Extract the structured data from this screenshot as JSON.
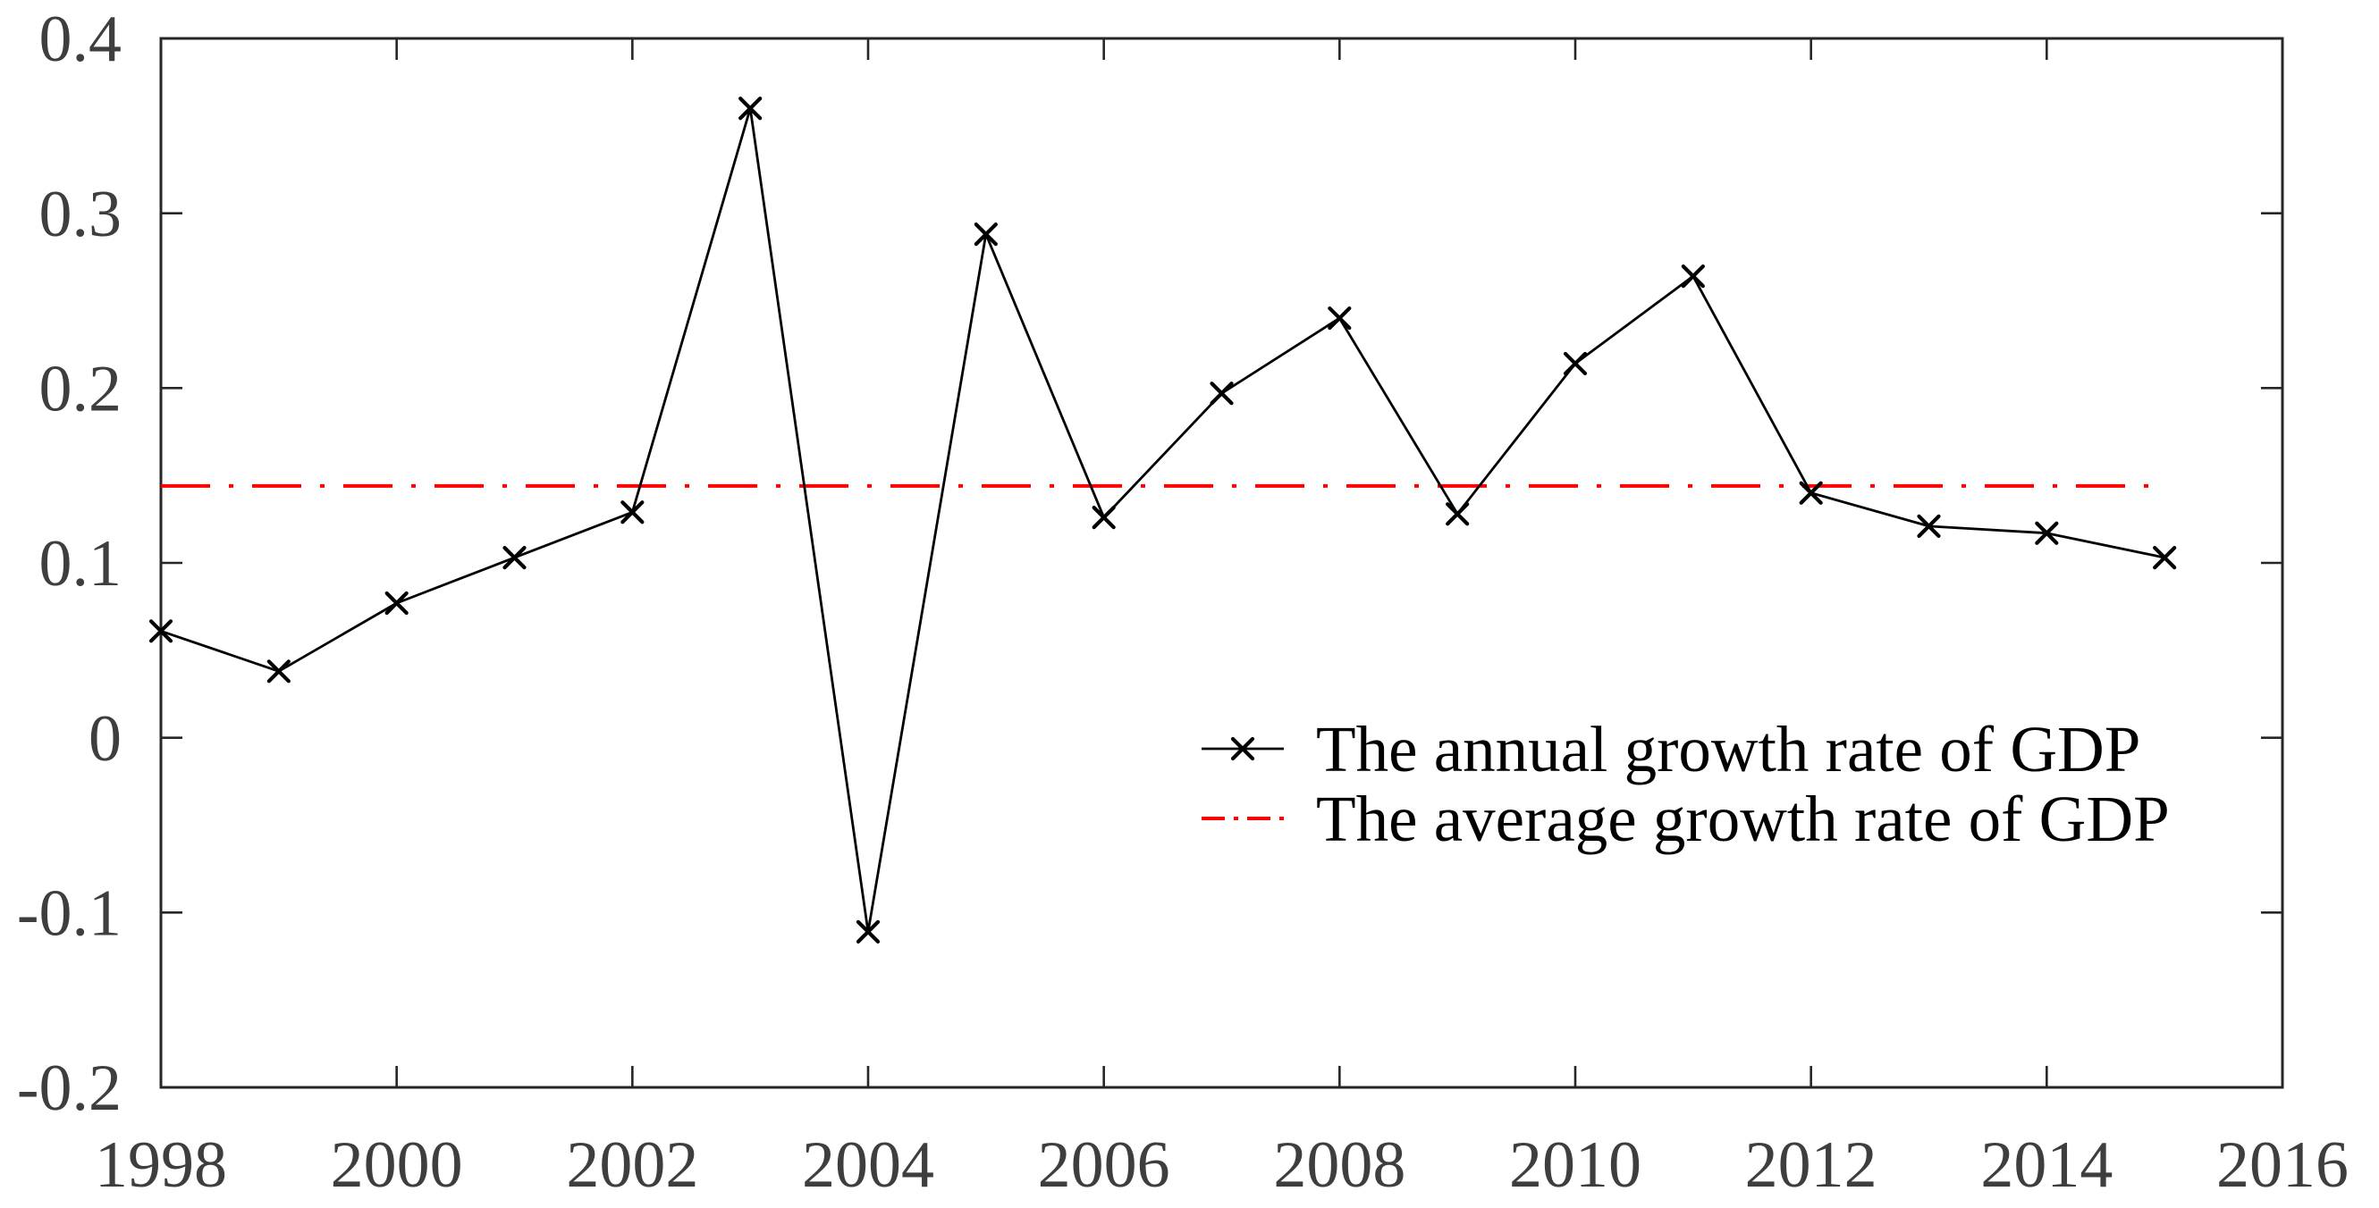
{
  "figure": {
    "background_color": "#ffffff",
    "axis_color": "#262626",
    "tick_label_color": "#3e3e3e",
    "series_color": "#000000",
    "average_line_color": "#ff0000"
  },
  "chart_data": {
    "type": "line",
    "title": "",
    "xlabel": "",
    "ylabel": "",
    "grid": false,
    "xlim": [
      1998,
      2016
    ],
    "ylim": [
      -0.2,
      0.4
    ],
    "xtick_labels": [
      "1998",
      "2000",
      "2002",
      "2004",
      "2006",
      "2008",
      "2010",
      "2012",
      "2014",
      "2016"
    ],
    "ytick_labels": [
      "-0.2",
      "-0.1",
      "0",
      "0.1",
      "0.2",
      "0.3",
      "0.4"
    ],
    "x": [
      1998,
      1999,
      2000,
      2001,
      2002,
      2003,
      2004,
      2005,
      2006,
      2007,
      2008,
      2009,
      2010,
      2011,
      2012,
      2013,
      2014,
      2015
    ],
    "series": [
      {
        "name": "The annual growth rate of GDP",
        "color": "#000000",
        "line_style": "solid",
        "marker": "x",
        "values": [
          0.061,
          0.038,
          0.077,
          0.103,
          0.129,
          0.36,
          -0.111,
          0.288,
          0.126,
          0.197,
          0.24,
          0.128,
          0.214,
          0.264,
          0.14,
          0.121,
          0.117,
          0.103
        ]
      },
      {
        "name": "The average growth rate of GDP",
        "color": "#ff0000",
        "line_style": "dash-dot",
        "marker": "none",
        "kind": "hline",
        "value": 0.144,
        "x_span": [
          1998,
          2015
        ]
      }
    ],
    "legend": {
      "position": "inside-center-right",
      "frame": false,
      "entries": [
        "The annual growth rate of GDP",
        "The average growth rate of GDP"
      ]
    }
  }
}
